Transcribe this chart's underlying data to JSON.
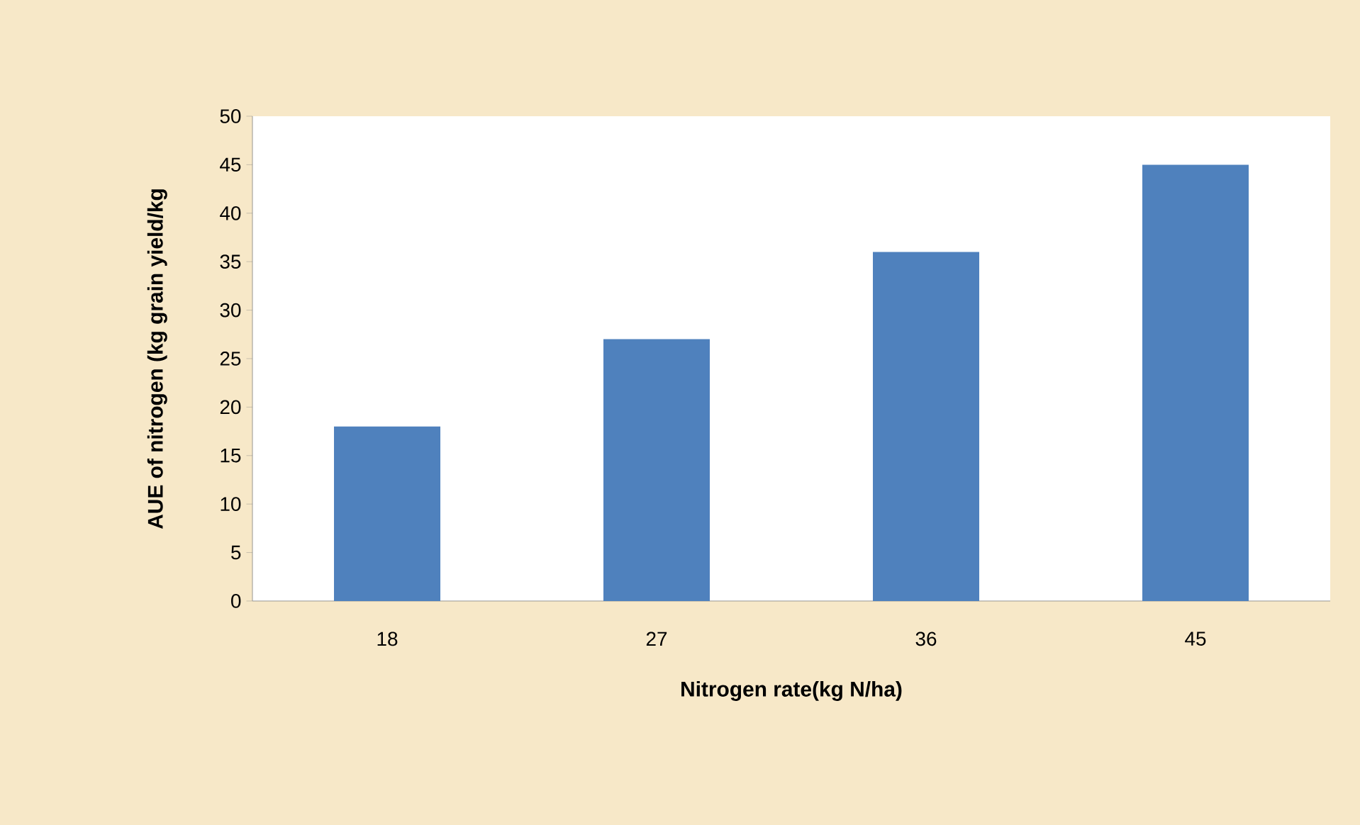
{
  "chart_data": {
    "type": "bar",
    "categories": [
      "18",
      "27",
      "36",
      "45"
    ],
    "values": [
      18,
      27,
      36,
      45
    ],
    "color": "#4f81bd",
    "xlabel": "Nitrogen rate(kg N/ha)",
    "ylabel": "AUE of nitrogen (kg grain yield/kg",
    "ylim": [
      0,
      50
    ],
    "yticks": [
      0,
      5,
      10,
      15,
      20,
      25,
      30,
      35,
      40,
      45,
      50
    ],
    "grid": false
  }
}
